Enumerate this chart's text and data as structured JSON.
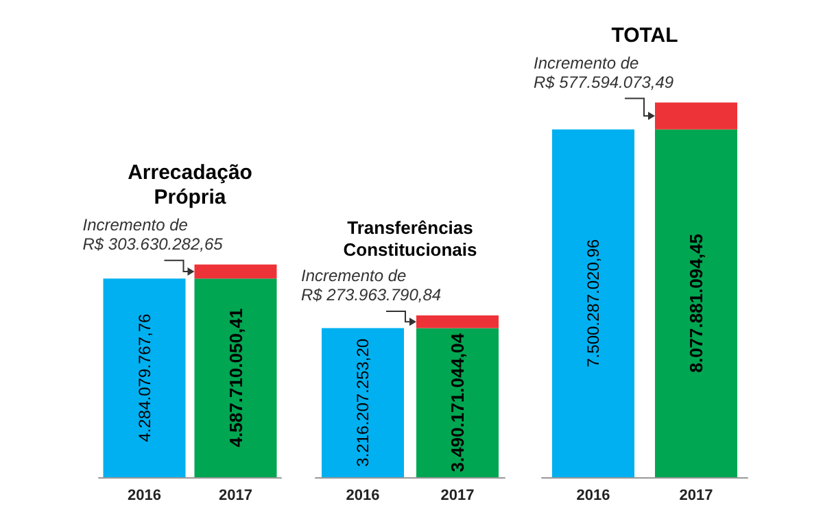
{
  "chart_data": [
    {
      "type": "bar",
      "title": "Arrecadação\nPrópria",
      "categories": [
        "2016",
        "2017"
      ],
      "stacked": true,
      "tick_labels": "x",
      "series": [
        {
          "colors": [
            "#00b0f0",
            "#00a651"
          ],
          "values": [
            4284079767.76,
            4284079767.76
          ],
          "value_labels": [
            "4.284.079.767,76",
            null
          ]
        },
        {
          "color": "#ee3338",
          "values": [
            null,
            303630282.65
          ]
        }
      ],
      "totals": [
        null,
        "4.587.710.050,41"
      ],
      "annotations": [
        {
          "text": "Incremento de\nR$ 303.630.282,65",
          "x": "2017",
          "y": 4587710050.41
        }
      ]
    },
    {
      "type": "bar",
      "title": "Transferências\nConstitucionais",
      "categories": [
        "2016",
        "2017"
      ],
      "stacked": true,
      "tick_labels": "x",
      "series": [
        {
          "colors": [
            "#00b0f0",
            "#00a651"
          ],
          "values": [
            3216207253.2,
            3216207253.2
          ],
          "value_labels": [
            "3.216.207.253,20",
            null
          ]
        },
        {
          "color": "#ee3338",
          "values": [
            null,
            273963790.84
          ]
        }
      ],
      "totals": [
        null,
        "3.490.171.044,04"
      ],
      "annotations": [
        {
          "text": "Incremento de\nR$ 273.963.790,84",
          "x": "2017",
          "y": 3490171044.04
        }
      ]
    },
    {
      "type": "bar",
      "title": "TOTAL",
      "categories": [
        "2016",
        "2017"
      ],
      "stacked": true,
      "tick_labels": "x",
      "series": [
        {
          "colors": [
            "#00b0f0",
            "#00a651"
          ],
          "values": [
            7500287020.96,
            7500287020.96
          ],
          "value_labels": [
            "7.500.287.020,96",
            null
          ]
        },
        {
          "color": "#ee3338",
          "values": [
            null,
            577594073.49
          ]
        }
      ],
      "totals": [
        null,
        "8.077.881.094,45"
      ],
      "annotations": [
        {
          "text": "Incremento de\nR$ 577.594.073,49",
          "x": "2017",
          "y": 8077881094.45
        }
      ]
    }
  ]
}
